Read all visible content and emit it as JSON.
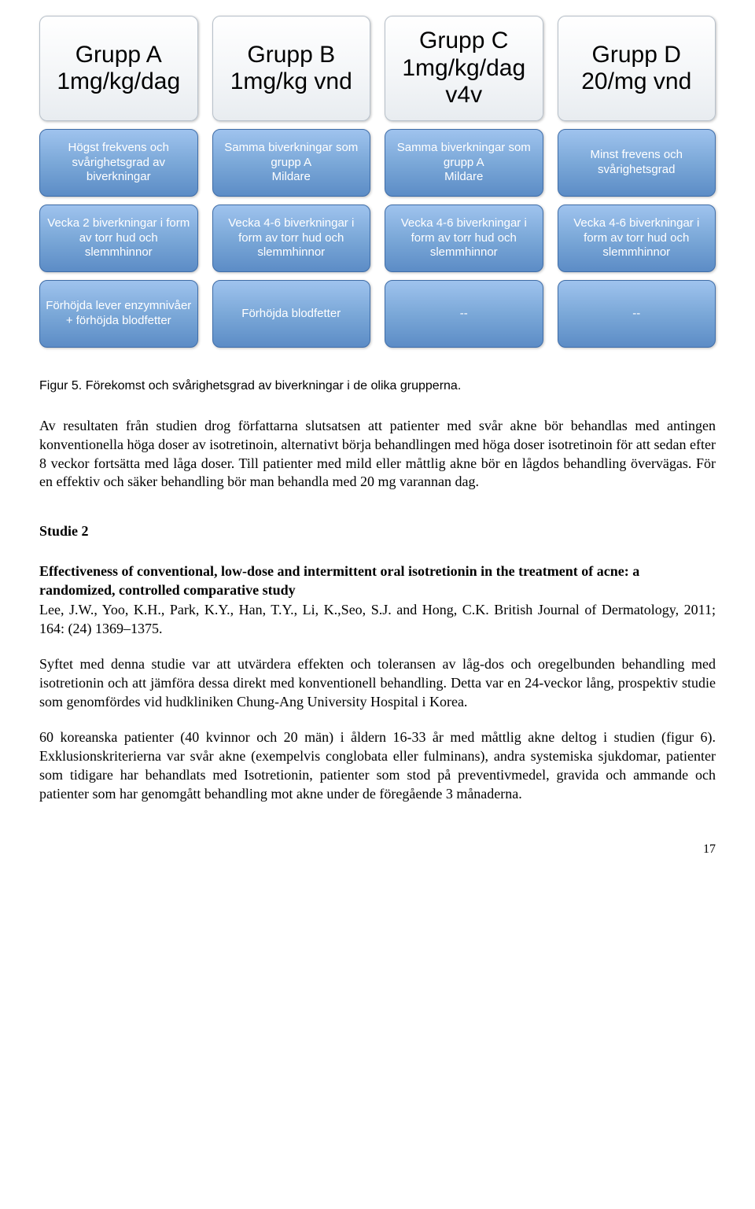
{
  "chart": {
    "columns": [
      {
        "head": "Grupp A\n1mg/kg/dag",
        "rows": [
          "Högst frekvens och svårighetsgrad av biverkningar",
          "Vecka 2 biverkningar i form av torr hud och slemmhinnor",
          "Förhöjda lever enzymnivåer + förhöjda blodfetter"
        ]
      },
      {
        "head": "Grupp B\n1mg/kg vnd",
        "rows": [
          "Samma biverkningar som grupp A\nMildare",
          "Vecka 4-6 biverkningar i form av torr hud och slemmhinnor",
          "Förhöjda blodfetter"
        ]
      },
      {
        "head": "Grupp C\n1mg/kg/dag v4v",
        "rows": [
          "Samma biverkningar som grupp A\nMildare",
          "Vecka 4-6 biverkningar i form av torr hud och slemmhinnor",
          "--"
        ]
      },
      {
        "head": "Grupp D\n20/mg vnd",
        "rows": [
          "Minst frevens och svårighetsgrad",
          "Vecka 4-6 biverkningar i form av torr hud och slemmhinnor",
          "--"
        ]
      }
    ],
    "head_bg_top": "#ffffff",
    "head_bg_bottom": "#e8ecf0",
    "head_border": "#b7c0ca",
    "body_bg_top": "#9fc3ee",
    "body_bg_bottom": "#5c8cc6",
    "body_border": "#3f6da8",
    "body_text_color": "#ffffff",
    "title_fontsize": 30,
    "body_fontsize": 15
  },
  "caption": "Figur 5. Förekomst och svårighetsgrad av biverkningar i de olika grupperna.",
  "paragraphs": {
    "p1": "Av resultaten från studien drog författarna slutsatsen att patienter med svår akne bör behandlas med antingen konventionella höga doser av isotretinoin, alternativt börja behandlingen med höga doser isotretinoin för att sedan efter 8 veckor fortsätta med låga doser. Till patienter med mild eller måttlig akne bör en lågdos behandling övervägas. För en effektiv och säker behandling bör man behandla med 20 mg varannan dag."
  },
  "study": {
    "label": "Studie 2",
    "title": "Effectiveness of conventional, low-dose and intermittent oral isotretionin in the treatment of acne: a randomized, controlled comparative study",
    "authors": "Lee, J.W., Yoo, K.H., Park, K.Y., Han, T.Y., Li, K.,Seo, S.J. and Hong, C.K. British Journal of Dermatology, 2011; 164: (24) 1369–1375.",
    "p2": "Syftet med denna studie var att utvärdera effekten och toleransen av låg-dos och oregelbunden behandling med isotretionin och att jämföra dessa direkt med konventionell behandling. Detta var en 24-veckor lång, prospektiv studie som genomfördes vid hudkliniken Chung-Ang University Hospital i Korea.",
    "p3": "60 koreanska patienter (40 kvinnor och 20 män) i åldern 16-33 år med måttlig akne deltog i studien (figur 6). Exklusionskriterierna var svår akne (exempelvis conglobata eller fulminans), andra systemiska sjukdomar, patienter som tidigare har behandlats med Isotretionin, patienter som stod på preventivmedel, gravida och ammande och patienter som har genomgått behandling mot akne under de föregående 3 månaderna."
  },
  "page_number": "17"
}
